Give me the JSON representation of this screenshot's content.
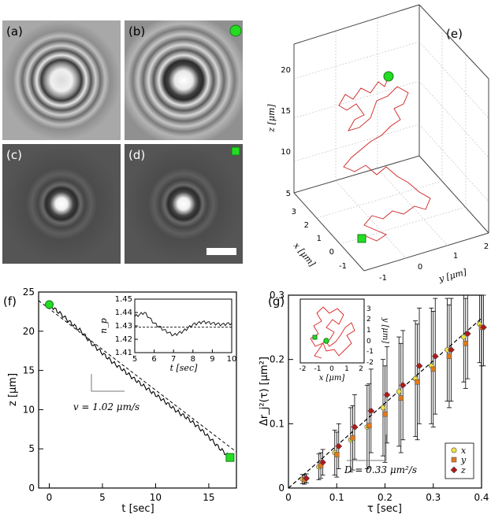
{
  "panels": {
    "a": "(a)",
    "b": "(b)",
    "c": "(c)",
    "d": "(d)",
    "e": "(e)",
    "f": "(f)",
    "g": "(g)"
  },
  "colors": {
    "green_marker": "#22dd22",
    "trajectory": "#cc2222",
    "x_marker": "#f0e040",
    "y_marker": "#e07a1a",
    "z_marker": "#b01818"
  },
  "panel_e": {
    "z_axis_label": "z [μm]",
    "x_axis_label": "x [μm]",
    "y_axis_label": "y [μm]",
    "z_ticks": [
      "5",
      "10",
      "15",
      "20"
    ],
    "x_ticks": [
      "-1",
      "0",
      "1",
      "2",
      "3"
    ],
    "y_ticks": [
      "-1",
      "0",
      "1",
      "2"
    ]
  },
  "chart_data": [
    {
      "id": "f",
      "type": "line",
      "xlabel": "t [sec]",
      "ylabel": "z [μm]",
      "xlim": [
        -1,
        17.6
      ],
      "ylim": [
        0,
        25
      ],
      "xticks": [
        0,
        5,
        10,
        15
      ],
      "yticks": [
        0,
        5,
        10,
        15,
        20,
        25
      ],
      "series": [
        {
          "name": "z(t)",
          "x": [
            0,
            1,
            2,
            3,
            4,
            5,
            6,
            7,
            8,
            9,
            10,
            11,
            12,
            13,
            14,
            15,
            16,
            17
          ],
          "y": [
            23.4,
            22.3,
            21.1,
            20.0,
            18.4,
            17.2,
            16.0,
            15.0,
            13.9,
            12.9,
            11.9,
            10.9,
            9.8,
            8.9,
            7.8,
            6.5,
            5.1,
            3.9
          ]
        },
        {
          "name": "fit",
          "x": [
            -1,
            17.6
          ],
          "y": [
            23.9,
            4.6
          ]
        }
      ],
      "annotation": "v = 1.02 μm/s",
      "inset": {
        "xlabel": "t [sec]",
        "ylabel": "n_p",
        "xlim": [
          5,
          10
        ],
        "ylim": [
          1.41,
          1.45
        ],
        "xticks": [
          5,
          6,
          7,
          8,
          9,
          10
        ],
        "yticks": [
          1.41,
          1.42,
          1.43,
          1.44,
          1.45
        ],
        "series": [
          {
            "name": "n_p(t)",
            "x": [
              5.0,
              5.5,
              6.0,
              6.5,
              7.0,
              7.5,
              8.0,
              8.5,
              9.0,
              9.5,
              10.0
            ],
            "y": [
              1.437,
              1.44,
              1.432,
              1.427,
              1.423,
              1.426,
              1.431,
              1.433,
              1.432,
              1.431,
              1.432
            ]
          },
          {
            "name": "mean",
            "x": [
              5,
              10
            ],
            "y": [
              1.429,
              1.429
            ]
          }
        ]
      }
    },
    {
      "id": "g",
      "type": "scatter",
      "xlabel": "τ [sec]",
      "ylabel": "Δr_j²(τ) [μm²]",
      "xlim": [
        0,
        0.4
      ],
      "ylim": [
        0,
        0.3
      ],
      "xticks": [
        0,
        0.1,
        0.2,
        0.3,
        0.4
      ],
      "yticks": [
        0,
        0.1,
        0.2,
        0.3
      ],
      "x": [
        0.033,
        0.067,
        0.1,
        0.133,
        0.167,
        0.2,
        0.233,
        0.267,
        0.3,
        0.333,
        0.367,
        0.4
      ],
      "series": [
        {
          "name": "x",
          "values": [
            0.014,
            0.033,
            0.055,
            0.075,
            0.095,
            0.125,
            0.15,
            0.17,
            0.19,
            0.215,
            0.235,
            0.255
          ]
        },
        {
          "name": "y",
          "values": [
            0.013,
            0.035,
            0.052,
            0.078,
            0.097,
            0.115,
            0.14,
            0.165,
            0.185,
            0.205,
            0.225,
            0.25
          ]
        },
        {
          "name": "z",
          "values": [
            0.015,
            0.04,
            0.065,
            0.095,
            0.12,
            0.145,
            0.16,
            0.19,
            0.205,
            0.215,
            0.24,
            0.25
          ]
        }
      ],
      "error_halfwidth": [
        0.007,
        0.02,
        0.035,
        0.05,
        0.065,
        0.075,
        0.085,
        0.09,
        0.09,
        0.08,
        0.07,
        0.06
      ],
      "fit": {
        "x": [
          0,
          0.4
        ],
        "y": [
          0,
          0.264
        ]
      },
      "annotation": "D = 0.33 μm²/s",
      "legend": [
        "x",
        "y",
        "z"
      ],
      "legend_position": "bottom-right",
      "inset": {
        "xlabel": "x [μm]",
        "ylabel": "y [μm]",
        "xticks": [
          -2,
          -1,
          0,
          1,
          2
        ],
        "yticks": [
          -2,
          -1,
          0,
          1,
          2,
          3
        ]
      }
    }
  ]
}
